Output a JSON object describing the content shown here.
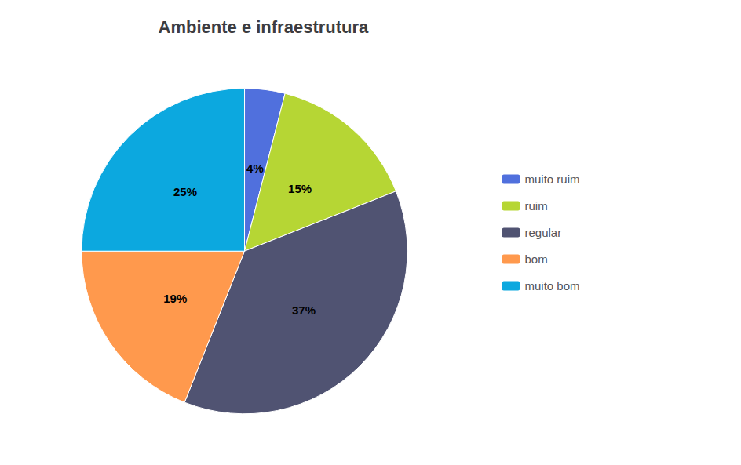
{
  "chart_data": {
    "type": "pie",
    "title": "Ambiente e infraestrutura",
    "categories": [
      "muito ruim",
      "ruim",
      "regular",
      "bom",
      "muito bom"
    ],
    "values": [
      4,
      15,
      37,
      19,
      25
    ],
    "value_labels": [
      "4%",
      "15%",
      "37%",
      "19%",
      "25%"
    ],
    "data_labels": true,
    "legend": "right"
  }
}
